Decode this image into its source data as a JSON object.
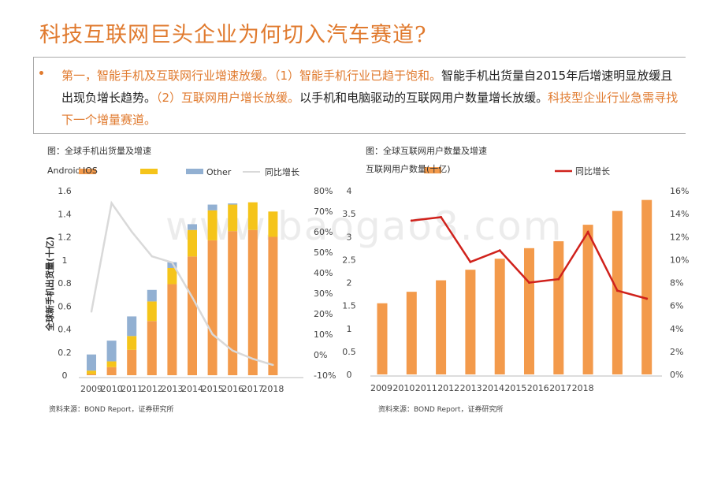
{
  "title": "科技互联网巨头企业为何切入汽车赛道?",
  "summary": {
    "seg1": "第一，智能手机及互联网行业增速放缓。（1）智能手机行业已趋于饱和。",
    "seg2": "智能手机出货量自2015年后增速明显放缓且出现负增长趋势。",
    "seg3": "（2）互联网用户增长放缓。",
    "seg4": "以手机和电脑驱动的互联网用户数量增长放缓。",
    "seg5": "科技型企业行业急需寻找下一个增量赛道。"
  },
  "watermark": "www.baogao8.com",
  "colors": {
    "android": "#f39a4b",
    "ios": "#f5c41a",
    "other": "#92b0d2",
    "growth_gray": "#d9d9d9",
    "growth_red": "#d0221c",
    "accent": "#e07a2e"
  },
  "chart_data": [
    {
      "type": "bar",
      "caption": "图：全球手机出货量及增速",
      "source": "资料来源：BOND Report，证券研究所",
      "ylabel": "全球新手机出货量(十亿)",
      "legend": [
        "Android",
        "IOS",
        "Other",
        "同比增长"
      ],
      "categories": [
        "2009",
        "2010",
        "2011",
        "2012",
        "2013",
        "2014",
        "2015",
        "2016",
        "2017",
        "2018"
      ],
      "yticks": [
        "0",
        "0.2",
        "0.4",
        "0.6",
        "0.8",
        "1",
        "1.2",
        "1.4",
        "1.6"
      ],
      "y2ticks": [
        "-10%",
        "0%",
        "10%",
        "20%",
        "30%",
        "40%",
        "50%",
        "60%",
        "70%",
        "80%"
      ],
      "ylim": [
        0,
        1.6
      ],
      "y2lim": [
        -10,
        80
      ],
      "series": [
        {
          "name": "Android",
          "values": [
            0.01,
            0.07,
            0.22,
            0.47,
            0.79,
            1.03,
            1.17,
            1.25,
            1.26,
            1.2
          ]
        },
        {
          "name": "IOS",
          "values": [
            0.03,
            0.05,
            0.12,
            0.17,
            0.14,
            0.23,
            0.26,
            0.23,
            0.24,
            0.22
          ]
        },
        {
          "name": "Other",
          "values": [
            0.14,
            0.18,
            0.17,
            0.1,
            0.05,
            0.05,
            0.05,
            0.01,
            0.0,
            0.0
          ]
        }
      ],
      "growth": {
        "name": "同比增长",
        "values": [
          21,
          74,
          60,
          48,
          45,
          28,
          10,
          2,
          -2,
          -5
        ]
      }
    },
    {
      "type": "bar",
      "caption": "图：全球互联网用户数量及增速",
      "source": "资料来源：BOND Report，证券研究所",
      "legend": [
        "互联网用户数量(十亿)",
        "同比增长"
      ],
      "categories": [
        "2009",
        "2010",
        "2011",
        "2012",
        "2013",
        "2014",
        "2015",
        "2016",
        "2017",
        "2018"
      ],
      "yticks": [
        "0",
        "0.5",
        "1",
        "1.5",
        "2",
        "2.5",
        "3",
        "3.5",
        "4"
      ],
      "y2ticks": [
        "0%",
        "2%",
        "4%",
        "6%",
        "8%",
        "10%",
        "12%",
        "14%",
        "16%"
      ],
      "ylim": [
        0,
        4
      ],
      "y2lim": [
        0,
        16
      ],
      "series": [
        {
          "name": "互联网用户数量(十亿)",
          "values": [
            1.55,
            1.8,
            2.05,
            2.28,
            2.52,
            2.75,
            2.9,
            3.26,
            3.56,
            3.8
          ]
        }
      ],
      "growth": {
        "name": "同比增长",
        "values": [
          13.4,
          13.7,
          9.8,
          10.8,
          8.0,
          8.3,
          12.4,
          7.3,
          6.6
        ]
      }
    }
  ]
}
